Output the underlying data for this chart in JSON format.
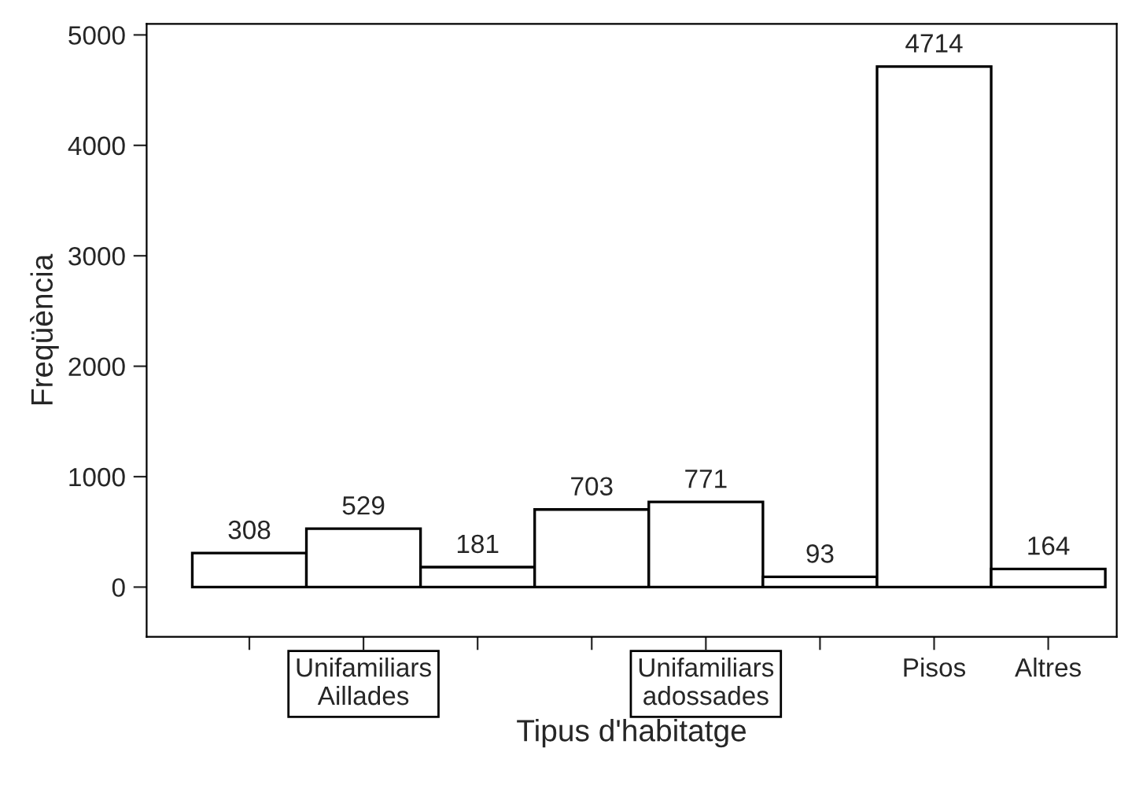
{
  "chart_data": {
    "type": "bar",
    "xlabel": "Tipus d'habitatge",
    "ylabel": "Freqüència",
    "categories": [
      null,
      "Unifamiliars\nAillades",
      null,
      null,
      "Unifamiliars\nadossades",
      null,
      "Pisos",
      "Altres"
    ],
    "values": [
      308,
      529,
      181,
      703,
      771,
      93,
      4714,
      164
    ],
    "color": "#ffffff",
    "ylim": [
      -450,
      5100
    ],
    "yticks": [
      0,
      1000,
      2000,
      3000,
      4000,
      5000
    ],
    "data_labels": true,
    "grid": false,
    "legend": false
  }
}
